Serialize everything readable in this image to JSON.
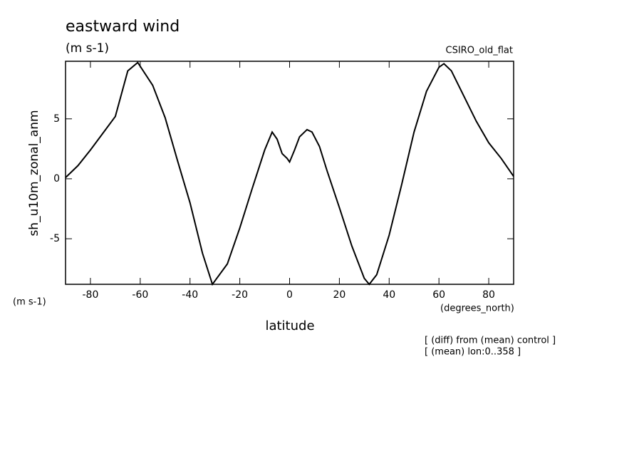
{
  "chart_data": {
    "type": "line",
    "title": "eastward wind",
    "subtitle": "(m s-1)",
    "model": "CSIRO_old_flat",
    "y_label": "sh_u10m_zonal_anm",
    "y_units": "(m s-1)",
    "x_units": "(degrees_north)",
    "x_label": "latitude",
    "notes": [
      "[ (diff) from (mean) control ]",
      "[ (mean) lon:0..358 ]"
    ],
    "x": [
      -90,
      -85,
      -80,
      -75,
      -70,
      -65,
      -61,
      -55,
      -50,
      -45,
      -40,
      -35,
      -31,
      -25,
      -20,
      -15,
      -10,
      -7,
      -5,
      -3,
      -1,
      0,
      2,
      4,
      7,
      9,
      12,
      15,
      20,
      25,
      30,
      32,
      35,
      40,
      45,
      50,
      55,
      60,
      62,
      65,
      70,
      75,
      80,
      85,
      90
    ],
    "series": [
      {
        "color": "#000000",
        "values": [
          0.1,
          1.1,
          2.4,
          3.8,
          5.2,
          9.0,
          9.7,
          7.8,
          5.1,
          1.5,
          -2.0,
          -6.2,
          -8.8,
          -7.1,
          -4.1,
          -0.8,
          2.4,
          3.9,
          3.3,
          2.1,
          1.7,
          1.4,
          2.4,
          3.5,
          4.1,
          3.9,
          2.7,
          0.7,
          -2.4,
          -5.6,
          -8.3,
          -8.8,
          -8.0,
          -4.7,
          -0.5,
          3.9,
          7.3,
          9.3,
          9.6,
          9.0,
          6.9,
          4.8,
          3.0,
          1.7,
          0.2
        ]
      }
    ],
    "xlim": [
      -90,
      90
    ],
    "ylim": [
      -8.8,
      9.8
    ],
    "xticks": [
      -80,
      -60,
      -40,
      -20,
      0,
      20,
      40,
      60,
      80
    ],
    "yticks": [
      -5,
      0,
      5
    ]
  }
}
